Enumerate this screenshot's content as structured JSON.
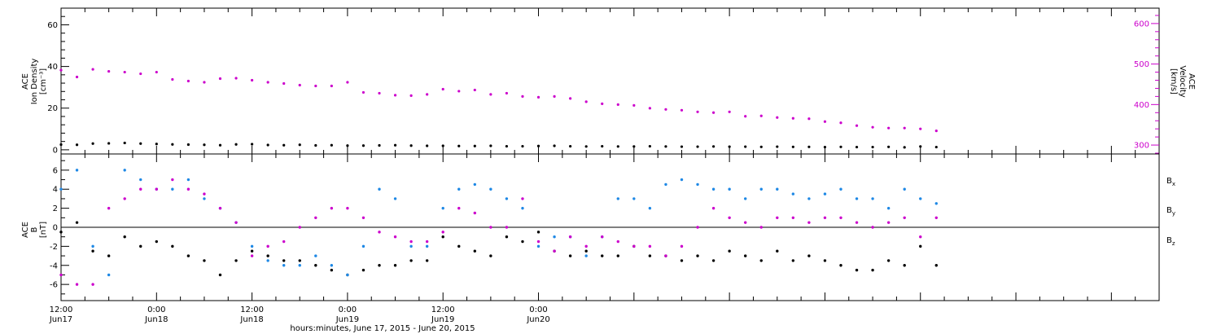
{
  "colors": {
    "black": "#000000",
    "magenta": "#cc00cc",
    "blue": "#1e88e5",
    "background": "#ffffff"
  },
  "chart_data": [
    {
      "type": "scatter",
      "panel": "top",
      "ylabel_left_lines": [
        "ACE",
        "Ion Density",
        "[cm⁻³]"
      ],
      "ylabel_right_lines": [
        "ACE",
        "Velocity",
        "[km/s]"
      ],
      "ylim_left": [
        -2,
        68
      ],
      "ylim_right": [
        278,
        638
      ],
      "yticks_left": [
        0,
        20,
        40,
        60
      ],
      "yticks_right": [
        300,
        400,
        500,
        600
      ],
      "series": [
        {
          "axis": "left",
          "color": "#000000",
          "t": [
            0,
            2,
            4,
            6,
            8,
            10,
            12,
            14,
            16,
            18,
            20,
            22,
            24,
            26,
            28,
            30,
            32,
            34,
            36,
            38,
            40,
            42,
            44,
            46,
            48,
            50,
            52,
            54,
            56,
            58,
            60,
            62,
            64,
            66,
            68,
            70,
            72,
            74,
            76,
            78,
            80,
            82,
            84,
            86,
            88,
            90,
            92,
            94,
            96,
            98,
            100,
            102,
            104,
            106,
            108,
            110
          ],
          "values": [
            2.5,
            2.4,
            3.0,
            3.1,
            3.3,
            3.0,
            2.8,
            2.6,
            2.5,
            2.4,
            2.2,
            2.6,
            2.7,
            2.3,
            2.2,
            2.4,
            2.1,
            2.2,
            2.0,
            2.0,
            2.1,
            2.2,
            2.0,
            1.9,
            1.9,
            1.8,
            1.8,
            1.9,
            1.7,
            1.7,
            1.8,
            1.9,
            1.7,
            1.6,
            1.7,
            1.6,
            1.6,
            1.7,
            1.6,
            1.5,
            1.5,
            1.6,
            1.5,
            1.5,
            1.4,
            1.5,
            1.4,
            1.4,
            1.3,
            1.4,
            1.3,
            1.3,
            1.4,
            1.2,
            1.6,
            1.3
          ]
        },
        {
          "axis": "right",
          "color": "#cc00cc",
          "t": [
            0,
            2,
            4,
            6,
            8,
            10,
            12,
            14,
            16,
            18,
            20,
            22,
            24,
            26,
            28,
            30,
            32,
            34,
            36,
            38,
            40,
            42,
            44,
            46,
            48,
            50,
            52,
            54,
            56,
            58,
            60,
            62,
            64,
            66,
            68,
            70,
            72,
            74,
            76,
            78,
            80,
            82,
            84,
            86,
            88,
            90,
            92,
            94,
            96,
            98,
            100,
            102,
            104,
            106,
            108,
            110
          ],
          "values": [
            485,
            468,
            487,
            482,
            480,
            476,
            480,
            462,
            458,
            455,
            464,
            465,
            460,
            455,
            452,
            448,
            446,
            446,
            455,
            430,
            428,
            423,
            422,
            425,
            438,
            433,
            436,
            425,
            428,
            420,
            418,
            420,
            415,
            407,
            402,
            400,
            398,
            391,
            388,
            386,
            382,
            380,
            382,
            371,
            372,
            368,
            366,
            365,
            358,
            355,
            348,
            344,
            342,
            342,
            340,
            335
          ]
        }
      ]
    },
    {
      "type": "scatter",
      "panel": "bottom",
      "ylabel_lines": [
        "ACE",
        "B",
        "[nT]"
      ],
      "ylim": [
        -7.7,
        7.7
      ],
      "yticks": [
        -6,
        -4,
        -2,
        0,
        2,
        4,
        6
      ],
      "legend_position": "right",
      "series": [
        {
          "name": "Bx",
          "color": "#000000",
          "t": [
            0,
            2,
            4,
            6,
            8,
            10,
            12,
            14,
            16,
            18,
            20,
            22,
            24,
            26,
            28,
            30,
            32,
            34,
            36,
            38,
            40,
            42,
            44,
            46,
            48,
            50,
            52,
            54,
            56,
            58,
            60,
            62,
            64,
            66,
            68,
            70,
            72,
            74,
            76,
            78,
            80,
            82,
            84,
            86,
            88,
            90,
            92,
            94,
            96,
            98,
            100,
            102,
            104,
            106,
            108,
            110
          ],
          "values": [
            -0.5,
            0.5,
            -2.5,
            -3.0,
            -1.0,
            -2.0,
            -1.5,
            -2.0,
            -3.0,
            -3.5,
            -5.0,
            -3.5,
            -2.5,
            -3.0,
            -3.5,
            -3.5,
            -4.0,
            -4.5,
            -5.0,
            -4.5,
            -4.0,
            -4.0,
            -3.5,
            -3.5,
            -1.0,
            -2.0,
            -2.5,
            -3.0,
            -1.0,
            -1.5,
            -0.5,
            -2.5,
            -3.0,
            -2.5,
            -3.0,
            -3.0,
            -2.0,
            -3.0,
            -3.0,
            -3.5,
            -3.0,
            -3.5,
            -2.5,
            -3.0,
            -3.5,
            -2.5,
            -3.5,
            -3.0,
            -3.5,
            -4.0,
            -4.5,
            -4.5,
            -3.5,
            -4.0,
            -2.0,
            -4.0
          ]
        },
        {
          "name": "By",
          "color": "#1e88e5",
          "t": [
            0,
            2,
            4,
            6,
            8,
            10,
            12,
            14,
            16,
            18,
            20,
            22,
            24,
            26,
            28,
            30,
            32,
            34,
            36,
            38,
            40,
            42,
            44,
            46,
            48,
            50,
            52,
            54,
            56,
            58,
            60,
            62,
            64,
            66,
            68,
            70,
            72,
            74,
            76,
            78,
            80,
            82,
            84,
            86,
            88,
            90,
            92,
            94,
            96,
            98,
            100,
            102,
            104,
            106,
            108,
            110
          ],
          "values": [
            4.0,
            6.0,
            -2.0,
            -5.0,
            6.0,
            5.0,
            4.0,
            4.0,
            5.0,
            3.0,
            2.0,
            0.5,
            -2.0,
            -3.5,
            -4.0,
            -4.0,
            -3.0,
            -4.0,
            -5.0,
            -2.0,
            4.0,
            3.0,
            -2.0,
            -2.0,
            2.0,
            4.0,
            4.5,
            4.0,
            3.0,
            2.0,
            -2.0,
            -1.0,
            -1.0,
            -3.0,
            -1.0,
            3.0,
            3.0,
            2.0,
            4.5,
            5.0,
            4.5,
            4.0,
            4.0,
            3.0,
            4.0,
            4.0,
            3.5,
            3.0,
            3.5,
            4.0,
            3.0,
            3.0,
            2.0,
            4.0,
            3.0,
            2.5
          ]
        },
        {
          "name": "Bz",
          "color": "#cc00cc",
          "t": [
            0,
            2,
            4,
            6,
            8,
            10,
            12,
            14,
            16,
            18,
            20,
            22,
            24,
            26,
            28,
            30,
            32,
            34,
            36,
            38,
            40,
            42,
            44,
            46,
            48,
            50,
            52,
            54,
            56,
            58,
            60,
            62,
            64,
            66,
            68,
            70,
            72,
            74,
            76,
            78,
            80,
            82,
            84,
            86,
            88,
            90,
            92,
            94,
            96,
            98,
            100,
            102,
            104,
            106,
            108,
            110
          ],
          "values": [
            -5.0,
            -6.0,
            -6.0,
            2.0,
            3.0,
            4.0,
            4.0,
            5.0,
            4.0,
            3.5,
            2.0,
            0.5,
            -3.0,
            -2.0,
            -1.5,
            0.0,
            1.0,
            2.0,
            2.0,
            1.0,
            -0.5,
            -1.0,
            -1.5,
            -1.5,
            -0.5,
            2.0,
            1.5,
            0.0,
            0.0,
            3.0,
            -1.5,
            -2.5,
            -1.0,
            -2.0,
            -1.0,
            -1.5,
            -2.0,
            -2.0,
            -3.0,
            -2.0,
            0.0,
            2.0,
            1.0,
            0.5,
            0.0,
            1.0,
            1.0,
            0.5,
            1.0,
            1.0,
            0.5,
            0.0,
            0.5,
            1.0,
            -1.0,
            1.0
          ]
        }
      ],
      "legend": [
        {
          "base": "B",
          "sub": "x",
          "color": "#000000"
        },
        {
          "base": "B",
          "sub": "y",
          "color": "#1e88e5"
        },
        {
          "base": "B",
          "sub": "z",
          "color": "#cc00cc"
        }
      ]
    }
  ],
  "time_axis": {
    "unit": "hours",
    "xlim": [
      0,
      138
    ],
    "major_ticks": [
      {
        "t": 0,
        "time": "12:00",
        "date": "Jun17"
      },
      {
        "t": 12,
        "time": "0:00",
        "date": "Jun18"
      },
      {
        "t": 24,
        "time": "12:00",
        "date": "Jun18"
      },
      {
        "t": 36,
        "time": "0:00",
        "date": "Jun19"
      },
      {
        "t": 48,
        "time": "12:00",
        "date": "Jun19"
      },
      {
        "t": 60,
        "time": "0:00",
        "date": "Jun20"
      }
    ],
    "xlabel": "hours:minutes, June 17, 2015 - June 20, 2015"
  }
}
